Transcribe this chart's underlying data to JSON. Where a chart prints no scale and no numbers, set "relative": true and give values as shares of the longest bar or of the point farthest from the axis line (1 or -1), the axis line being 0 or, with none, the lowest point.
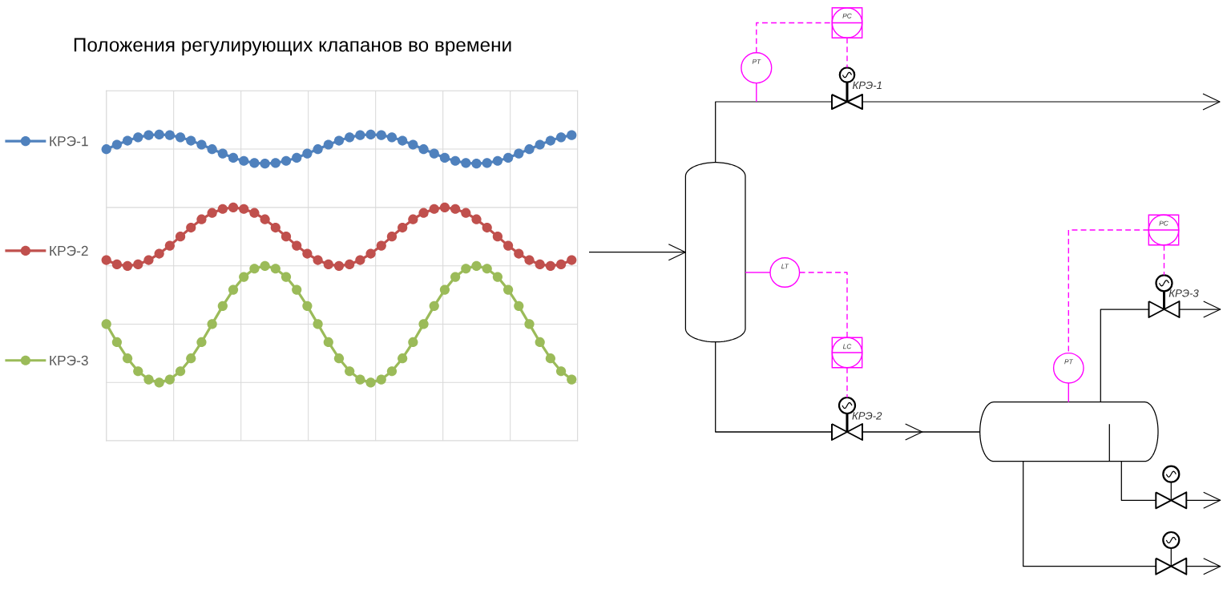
{
  "chart_data": [
    {
      "type": "line",
      "title": "Положения регулирующих клапанов во времени",
      "categories": [
        null,
        null,
        null,
        null,
        null,
        null,
        null,
        null,
        null,
        null,
        null,
        null,
        null,
        null,
        null,
        null,
        null,
        null,
        null,
        null,
        null,
        null,
        null,
        null,
        null,
        null,
        null,
        null,
        null,
        null,
        null,
        null,
        null,
        null,
        null,
        null,
        null,
        null,
        null,
        null,
        null,
        null,
        null,
        null,
        null
      ],
      "relative": true,
      "series": [
        {
          "name": "КРЭ-1",
          "color": "#4f81bd",
          "values": [
            0.952,
            0.967,
            0.98,
            0.991,
            0.998,
            1.0,
            0.998,
            0.991,
            0.98,
            0.967,
            0.952,
            0.938,
            0.924,
            0.914,
            0.907,
            0.905,
            0.907,
            0.914,
            0.924,
            0.938,
            0.952,
            0.967,
            0.98,
            0.991,
            0.998,
            1.0,
            0.998,
            0.991,
            0.98,
            0.967,
            0.952,
            0.938,
            0.924,
            0.914,
            0.907,
            0.905,
            0.907,
            0.914,
            0.924,
            0.938,
            0.952,
            0.967,
            0.98,
            0.991,
            0.998
          ]
        },
        {
          "name": "КРЭ-2",
          "color": "#c0504d",
          "values": [
            0.59,
            0.576,
            0.571,
            0.576,
            0.59,
            0.611,
            0.637,
            0.667,
            0.696,
            0.723,
            0.744,
            0.757,
            0.762,
            0.757,
            0.744,
            0.723,
            0.696,
            0.667,
            0.637,
            0.611,
            0.59,
            0.576,
            0.571,
            0.576,
            0.59,
            0.611,
            0.637,
            0.667,
            0.696,
            0.723,
            0.744,
            0.757,
            0.762,
            0.757,
            0.744,
            0.723,
            0.696,
            0.667,
            0.637,
            0.611,
            0.59,
            0.576,
            0.571,
            0.576,
            0.59
          ]
        },
        {
          "name": "КРЭ-3",
          "color": "#9bbb59",
          "values": [
            0.381,
            0.322,
            0.269,
            0.227,
            0.2,
            0.19,
            0.2,
            0.227,
            0.269,
            0.322,
            0.381,
            0.44,
            0.493,
            0.535,
            0.562,
            0.571,
            0.562,
            0.535,
            0.493,
            0.44,
            0.381,
            0.322,
            0.269,
            0.227,
            0.2,
            0.19,
            0.2,
            0.227,
            0.269,
            0.322,
            0.381,
            0.44,
            0.493,
            0.535,
            0.562,
            0.571,
            0.562,
            0.535,
            0.493,
            0.44,
            0.381,
            0.322,
            0.269,
            0.227,
            0.2
          ]
        }
      ],
      "grid": true,
      "legend": "left",
      "marker": "circle",
      "line_style": "solid",
      "tick_labels": false
    },
    {
      "type": "other",
      "annotations": [
        "PC",
        "PT",
        "КРЭ-1",
        "LT",
        "LC",
        "КРЭ-2",
        "PC",
        "PT",
        "КРЭ-3"
      ]
    }
  ]
}
